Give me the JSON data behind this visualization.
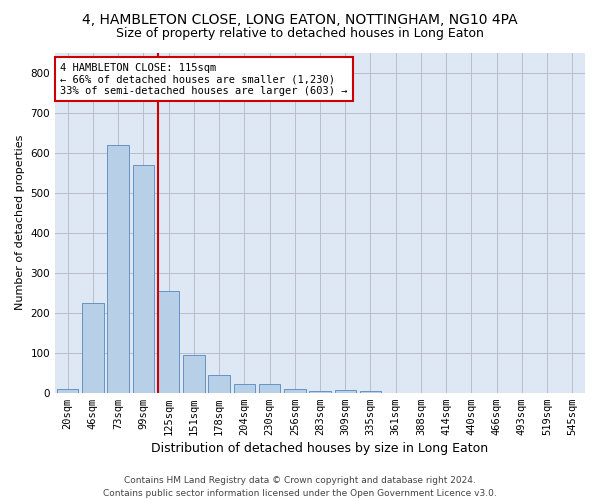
{
  "title": "4, HAMBLETON CLOSE, LONG EATON, NOTTINGHAM, NG10 4PA",
  "subtitle": "Size of property relative to detached houses in Long Eaton",
  "xlabel": "Distribution of detached houses by size in Long Eaton",
  "ylabel": "Number of detached properties",
  "footnote": "Contains HM Land Registry data © Crown copyright and database right 2024.\nContains public sector information licensed under the Open Government Licence v3.0.",
  "bar_labels": [
    "20sqm",
    "46sqm",
    "73sqm",
    "99sqm",
    "125sqm",
    "151sqm",
    "178sqm",
    "204sqm",
    "230sqm",
    "256sqm",
    "283sqm",
    "309sqm",
    "335sqm",
    "361sqm",
    "388sqm",
    "414sqm",
    "440sqm",
    "466sqm",
    "493sqm",
    "519sqm",
    "545sqm"
  ],
  "bar_values": [
    10,
    225,
    618,
    568,
    253,
    95,
    44,
    22,
    22,
    10,
    5,
    6,
    5,
    0,
    0,
    0,
    0,
    0,
    0,
    0,
    0
  ],
  "bar_color": "#b8cfe8",
  "bar_edge_color": "#5588bb",
  "vline_x": 3.575,
  "vline_color": "#cc0000",
  "annotation_text": "4 HAMBLETON CLOSE: 115sqm\n← 66% of detached houses are smaller (1,230)\n33% of semi-detached houses are larger (603) →",
  "annotation_box_color": "#ffffff",
  "annotation_box_edge": "#cc0000",
  "ylim": [
    0,
    850
  ],
  "yticks": [
    0,
    100,
    200,
    300,
    400,
    500,
    600,
    700,
    800
  ],
  "background_color": "#ffffff",
  "plot_bg_color": "#dde8f4",
  "grid_color": "#bbbbcc",
  "title_fontsize": 10,
  "subtitle_fontsize": 9,
  "xlabel_fontsize": 9,
  "ylabel_fontsize": 8,
  "tick_fontsize": 7.5,
  "annot_fontsize": 7.5,
  "footnote_fontsize": 6.5
}
